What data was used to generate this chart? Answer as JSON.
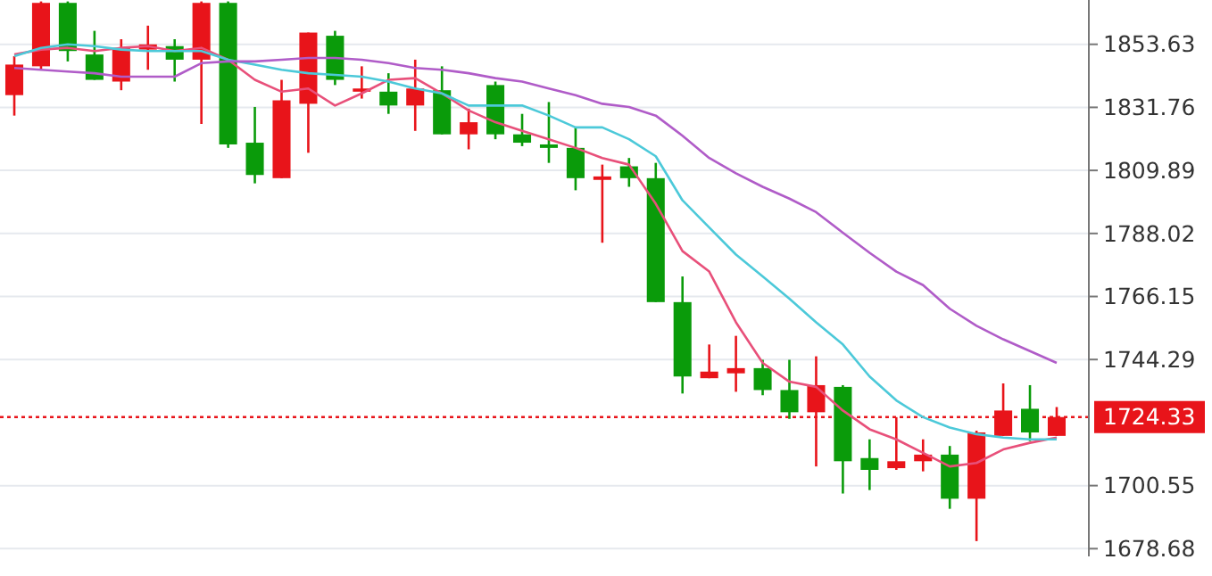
{
  "chart_data": {
    "type": "candlestick",
    "categories": [
      null,
      null,
      null,
      null,
      null,
      null,
      null,
      null,
      null,
      null,
      null,
      null,
      null,
      null,
      null,
      null,
      null,
      null,
      null,
      null,
      null,
      null,
      null,
      null,
      null,
      null,
      null,
      null,
      null,
      null,
      null,
      null,
      null,
      null,
      null,
      null,
      null,
      null,
      null,
      null
    ],
    "ohlc": [
      [
        1836.0,
        1849.5,
        1828.9,
        1846.6
      ],
      [
        1846.0,
        1868.5,
        1844.8,
        1868.0
      ],
      [
        1868.0,
        1868.5,
        1847.7,
        1851.3
      ],
      [
        1850.1,
        1858.3,
        1841.3,
        1841.3
      ],
      [
        1840.7,
        1855.4,
        1837.7,
        1852.4
      ],
      [
        1851.8,
        1860.1,
        1844.8,
        1853.6
      ],
      [
        1853.0,
        1855.4,
        1840.7,
        1848.3
      ],
      [
        1848.3,
        1868.5,
        1826.0,
        1868.0
      ],
      [
        1868.0,
        1868.5,
        1817.7,
        1818.9
      ],
      [
        1819.5,
        1831.9,
        1805.4,
        1808.3
      ],
      [
        1807.2,
        1841.3,
        1807.2,
        1834.2
      ],
      [
        1833.0,
        1857.7,
        1816.0,
        1857.7
      ],
      [
        1856.6,
        1858.3,
        1839.5,
        1841.3
      ],
      [
        1837.2,
        1846.0,
        1834.8,
        1838.3
      ],
      [
        1837.2,
        1843.6,
        1829.5,
        1832.4
      ],
      [
        1832.4,
        1848.3,
        1823.6,
        1838.3
      ],
      [
        1837.7,
        1846.0,
        1822.4,
        1822.4
      ],
      [
        1822.4,
        1831.3,
        1817.2,
        1826.6
      ],
      [
        1839.5,
        1840.7,
        1820.7,
        1822.4
      ],
      [
        1822.4,
        1829.5,
        1818.3,
        1819.5
      ],
      [
        1818.9,
        1833.6,
        1812.5,
        1817.7
      ],
      [
        1817.7,
        1824.8,
        1803.0,
        1807.2
      ],
      [
        1806.6,
        1811.9,
        1784.8,
        1807.8
      ],
      [
        1811.3,
        1814.2,
        1804.2,
        1807.2
      ],
      [
        1807.2,
        1812.5,
        1764.2,
        1764.2
      ],
      [
        1764.2,
        1773.1,
        1732.5,
        1738.4
      ],
      [
        1737.8,
        1749.5,
        1737.8,
        1740.1
      ],
      [
        1739.5,
        1752.5,
        1733.1,
        1741.3
      ],
      [
        1741.3,
        1744.2,
        1731.9,
        1733.7
      ],
      [
        1733.7,
        1744.2,
        1723.7,
        1726.0
      ],
      [
        1726.0,
        1745.4,
        1707.2,
        1735.4
      ],
      [
        1734.8,
        1735.4,
        1697.8,
        1709.0
      ],
      [
        1710.1,
        1716.6,
        1699.0,
        1706.0
      ],
      [
        1706.6,
        1724.3,
        1706.0,
        1709.0
      ],
      [
        1709.0,
        1716.6,
        1705.5,
        1711.3
      ],
      [
        1711.3,
        1714.3,
        1692.5,
        1696.0
      ],
      [
        1696.0,
        1719.6,
        1681.3,
        1719.0
      ],
      [
        1717.8,
        1736.0,
        1717.8,
        1726.6
      ],
      [
        1727.2,
        1735.4,
        1716.0,
        1719.0
      ],
      [
        1717.8,
        1727.8,
        1717.8,
        1724.33
      ]
    ],
    "colors": [
      "#e8141a",
      "#e8141a",
      "#0a9b0a",
      "#0a9b0a",
      "#e8141a",
      "#e8141a",
      "#0a9b0a",
      "#e8141a",
      "#0a9b0a",
      "#0a9b0a",
      "#e8141a",
      "#e8141a",
      "#0a9b0a",
      "#e8141a",
      "#0a9b0a",
      "#e8141a",
      "#0a9b0a",
      "#e8141a",
      "#0a9b0a",
      "#0a9b0a",
      "#0a9b0a",
      "#0a9b0a",
      "#e8141a",
      "#0a9b0a",
      "#0a9b0a",
      "#0a9b0a",
      "#e8141a",
      "#e8141a",
      "#0a9b0a",
      "#0a9b0a",
      "#e8141a",
      "#0a9b0a",
      "#0a9b0a",
      "#e8141a",
      "#e8141a",
      "#0a9b0a",
      "#e8141a",
      "#e8141a",
      "#0a9b0a",
      "#e8141a"
    ],
    "series": [
      {
        "type": "line",
        "color": "#e8507a",
        "values": [
          1850.1,
          1851.8,
          1852.4,
          1851.3,
          1852.4,
          1853.0,
          1851.3,
          1852.4,
          1848.3,
          1841.3,
          1837.2,
          1838.3,
          1832.4,
          1836.6,
          1841.3,
          1841.9,
          1836.6,
          1830.7,
          1826.6,
          1823.6,
          1820.7,
          1817.7,
          1814.2,
          1811.9,
          1798.3,
          1781.9,
          1774.8,
          1757.2,
          1743.1,
          1736.6,
          1734.8,
          1726.6,
          1720.1,
          1716.6,
          1711.9,
          1707.2,
          1708.4,
          1713.1,
          1715.4,
          1717.2
        ]
      },
      {
        "type": "line",
        "color": "#4cc9d9",
        "values": [
          1849.5,
          1852.4,
          1853.6,
          1853.0,
          1851.8,
          1851.3,
          1851.3,
          1851.3,
          1848.3,
          1846.6,
          1844.8,
          1843.6,
          1843.0,
          1842.4,
          1840.7,
          1838.3,
          1836.6,
          1832.4,
          1832.4,
          1832.4,
          1828.9,
          1824.8,
          1824.8,
          1820.7,
          1814.8,
          1799.5,
          1790.1,
          1780.7,
          1773.1,
          1765.4,
          1757.2,
          1749.5,
          1738.4,
          1730.1,
          1724.3,
          1720.7,
          1718.4,
          1717.2,
          1716.6,
          1716.6
        ]
      },
      {
        "type": "line",
        "color": "#b05cc8",
        "values": [
          1845.4,
          1844.8,
          1844.2,
          1843.6,
          1842.4,
          1842.4,
          1842.4,
          1847.1,
          1847.7,
          1847.7,
          1848.3,
          1848.9,
          1848.9,
          1848.3,
          1847.1,
          1845.4,
          1844.8,
          1843.6,
          1841.9,
          1840.7,
          1838.3,
          1836.0,
          1833.0,
          1831.9,
          1828.9,
          1821.9,
          1814.2,
          1808.9,
          1804.2,
          1800.1,
          1795.4,
          1788.3,
          1781.3,
          1774.8,
          1770.1,
          1761.9,
          1756.0,
          1751.3,
          1747.2,
          1743.1
        ]
      }
    ],
    "ylim": [
      1676,
      1869
    ],
    "yticks": [
      1678.68,
      1700.55,
      1744.29,
      1766.15,
      1788.02,
      1809.89,
      1831.76,
      1853.63
    ],
    "grid": "y",
    "ref_lines": [
      {
        "axis": "y",
        "value": 1724.33,
        "label": "1724.33",
        "color": "#e8141a",
        "line_style": "dotted"
      }
    ]
  }
}
